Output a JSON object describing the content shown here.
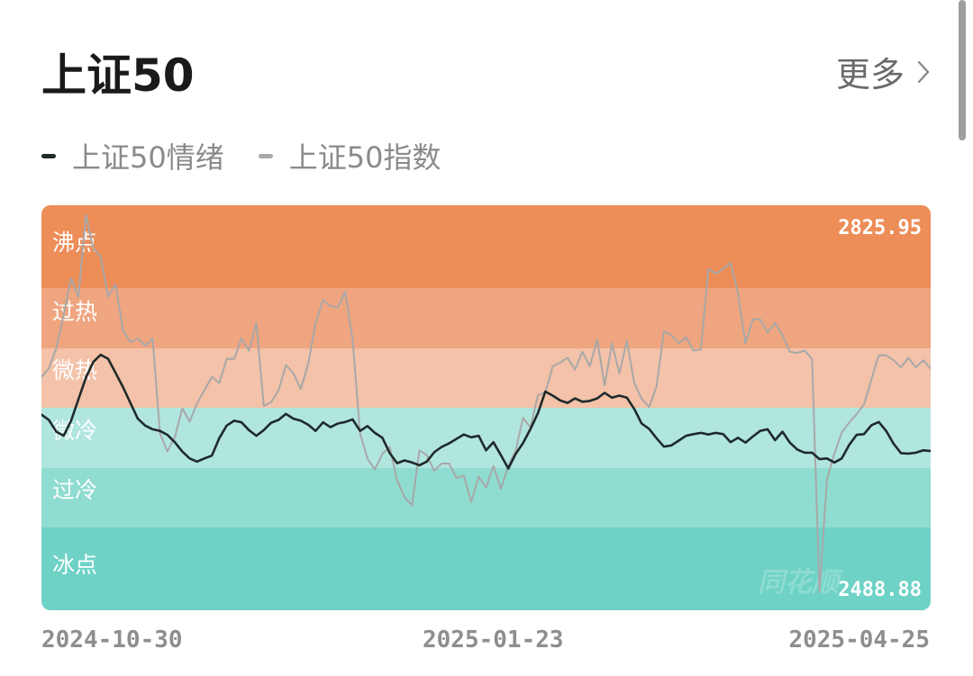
{
  "header": {
    "title": "上证50",
    "more_label": "更多"
  },
  "legend": [
    {
      "label": "上证50情绪",
      "color": "#1f2a2a"
    },
    {
      "label": "上证50指数",
      "color": "#a8a8a8"
    }
  ],
  "watermark": "同花顺",
  "chart_data": {
    "type": "line",
    "zones": [
      {
        "label": "沸点",
        "color": "#ed8d58"
      },
      {
        "label": "过热",
        "color": "#efa57f"
      },
      {
        "label": "微热",
        "color": "#f3c2a8"
      },
      {
        "label": "微冷",
        "color": "#b1e6df"
      },
      {
        "label": "过冷",
        "color": "#8fdcd0"
      },
      {
        "label": "冰点",
        "color": "#6ed2c6"
      }
    ],
    "y_max_label": "2825.95",
    "y_min_label": "2488.88",
    "x_labels": [
      "2024-10-30",
      "2025-01-23",
      "2025-04-25"
    ],
    "series": [
      {
        "name": "上证50情绪",
        "color": "#1f2a2a",
        "values": [
          48.3,
          47.0,
          44.1,
          43.1,
          46.8,
          52.1,
          57.4,
          61.3,
          63.1,
          62.1,
          58.6,
          55.1,
          51.2,
          47.3,
          45.6,
          44.7,
          44.3,
          43.3,
          41.5,
          39.2,
          37.5,
          36.7,
          37.5,
          38.2,
          42.5,
          45.6,
          46.8,
          46.4,
          44.5,
          43.1,
          44.5,
          46.3,
          47.0,
          48.5,
          47.3,
          46.8,
          45.8,
          44.3,
          46.4,
          45.2,
          46.1,
          46.5,
          47.1,
          44.3,
          45.5,
          43.8,
          42.6,
          38.8,
          36.3,
          37.0,
          36.5,
          35.8,
          36.7,
          39.0,
          40.3,
          41.2,
          42.3,
          43.4,
          42.7,
          43.1,
          39.5,
          41.5,
          38.3,
          35.0,
          38.6,
          41.3,
          44.8,
          48.7,
          54.0,
          53.0,
          51.8,
          51.2,
          52.3,
          51.5,
          51.7,
          52.3,
          53.7,
          52.5,
          53.0,
          52.5,
          49.7,
          46.1,
          44.8,
          42.5,
          40.4,
          40.7,
          41.9,
          43.1,
          43.5,
          43.8,
          43.4,
          43.8,
          43.5,
          41.5,
          42.6,
          41.4,
          42.9,
          44.3,
          44.7,
          42.0,
          44.1,
          41.4,
          39.7,
          38.9,
          38.9,
          37.3,
          37.5,
          36.5,
          37.5,
          40.8,
          43.3,
          43.5,
          45.7,
          46.5,
          44.3,
          41.1,
          38.8,
          38.7,
          38.9,
          39.5,
          39.3
        ]
      },
      {
        "name": "上证50指数",
        "color": "#a8a8a8",
        "values": [
          2683,
          2690,
          2707,
          2735,
          2765,
          2750,
          2818,
          2790,
          2783,
          2750,
          2760,
          2722,
          2712,
          2715,
          2709,
          2715,
          2636,
          2621,
          2633,
          2657,
          2646,
          2661,
          2672,
          2683,
          2678,
          2698,
          2698,
          2715,
          2705,
          2728,
          2659,
          2662,
          2672,
          2693,
          2686,
          2673,
          2694,
          2728,
          2747,
          2742,
          2741,
          2754,
          2714,
          2636,
          2615,
          2606,
          2619,
          2625,
          2597,
          2583,
          2576,
          2622,
          2618,
          2605,
          2611,
          2611,
          2599,
          2601,
          2579,
          2600,
          2591,
          2609,
          2590,
          2609,
          2622,
          2649,
          2641,
          2668,
          2670,
          2692,
          2695,
          2699,
          2689,
          2704,
          2692,
          2714,
          2676,
          2711,
          2686,
          2713,
          2678,
          2665,
          2658,
          2675,
          2721,
          2718,
          2711,
          2716,
          2705,
          2706,
          2773,
          2769,
          2773,
          2778,
          2753,
          2711,
          2731,
          2731,
          2720,
          2728,
          2718,
          2704,
          2703,
          2705,
          2698,
          2504,
          2598,
          2619,
          2637,
          2645,
          2652,
          2660,
          2681,
          2701,
          2701,
          2697,
          2691,
          2699,
          2691,
          2697,
          2690
        ]
      }
    ]
  }
}
